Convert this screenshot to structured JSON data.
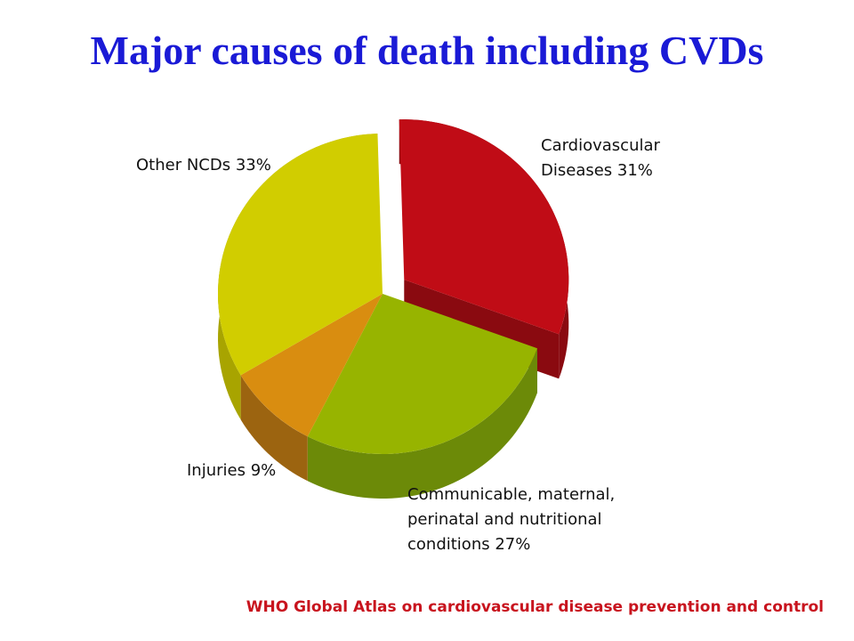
{
  "title": "Major causes of death including CVDs",
  "source": "WHO Global Atlas on cardiovascular disease prevention and control",
  "chart_data": {
    "type": "pie",
    "slices": [
      {
        "label": "Cardiovascular\nDiseases 31%",
        "value": 31,
        "color": "#c00c16",
        "side_color": "#8a0a10",
        "exploded": true
      },
      {
        "label": "Communicable, maternal,\nperinatal and nutritional\nconditions 27%",
        "value": 27,
        "color": "#97b400",
        "side_color": "#6c8a08",
        "exploded": false
      },
      {
        "label": "Injuries 9%",
        "value": 9,
        "color": "#d98d10",
        "side_color": "#9c6410",
        "exploded": false
      },
      {
        "label": "Other NCDs 33%",
        "value": 33,
        "color": "#d1cd00",
        "side_color": "#a8a400",
        "exploded": false
      }
    ]
  }
}
